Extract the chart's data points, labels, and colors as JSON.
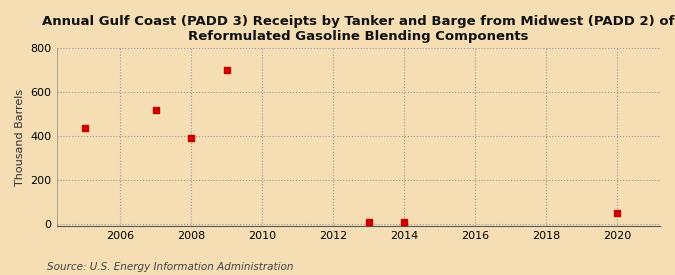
{
  "title": "Annual Gulf Coast (PADD 3) Receipts by Tanker and Barge from Midwest (PADD 2) of\nReformulated Gasoline Blending Components",
  "ylabel": "Thousand Barrels",
  "source": "Source: U.S. Energy Information Administration",
  "x_data": [
    2005,
    2007,
    2008,
    2009,
    2013,
    2014,
    2020
  ],
  "y_data": [
    435,
    520,
    390,
    700,
    7,
    7,
    48
  ],
  "marker_color": "#CC0000",
  "marker_size": 5,
  "xlim": [
    2004.2,
    2021.2
  ],
  "ylim": [
    -10,
    800
  ],
  "yticks": [
    0,
    200,
    400,
    600,
    800
  ],
  "xticks": [
    2006,
    2008,
    2010,
    2012,
    2014,
    2016,
    2018,
    2020
  ],
  "bg_color": "#F5DEB3",
  "plot_bg_color": "#F5DEB3",
  "title_fontsize": 9.5,
  "label_fontsize": 8,
  "tick_fontsize": 8,
  "source_fontsize": 7.5
}
